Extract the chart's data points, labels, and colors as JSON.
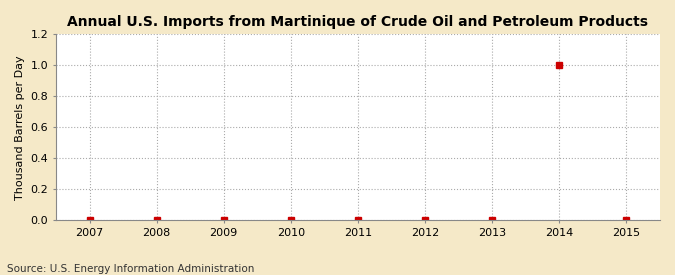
{
  "title": "Annual U.S. Imports from Martinique of Crude Oil and Petroleum Products",
  "ylabel": "Thousand Barrels per Day",
  "source_text": "Source: U.S. Energy Information Administration",
  "x_years": [
    2007,
    2008,
    2009,
    2010,
    2011,
    2012,
    2013,
    2014,
    2015
  ],
  "data_points": {
    "2007": 0.0,
    "2008": 0.0,
    "2009": 0.0,
    "2010": 0.0,
    "2011": 0.0,
    "2012": 0.0,
    "2013": 0.0,
    "2014": 1.0,
    "2015": 0.0
  },
  "xlim": [
    2006.5,
    2015.5
  ],
  "ylim": [
    0.0,
    1.2
  ],
  "yticks": [
    0.0,
    0.2,
    0.4,
    0.6,
    0.8,
    1.0,
    1.2
  ],
  "marker_color": "#cc0000",
  "marker_size": 4,
  "grid_color": "#aaaaaa",
  "figure_bg_color": "#f5e9c8",
  "plot_bg_color": "#ffffff",
  "title_fontsize": 10,
  "label_fontsize": 8,
  "tick_fontsize": 8,
  "source_fontsize": 7.5
}
